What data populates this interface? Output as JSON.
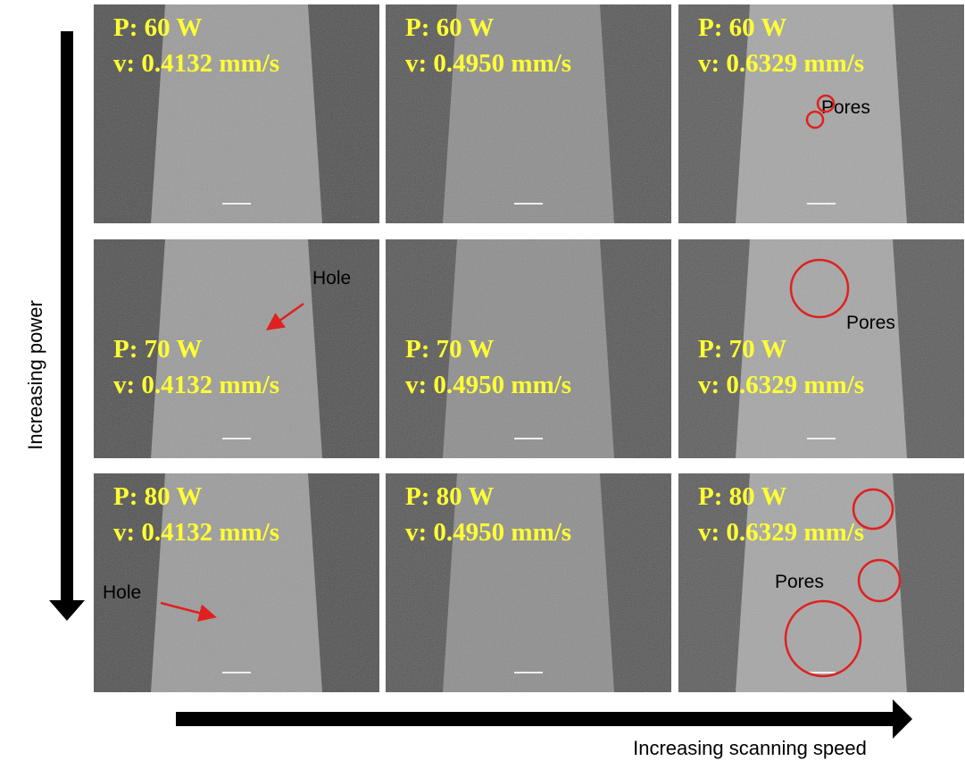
{
  "y_axis_label": "Increasing power",
  "x_axis_label": "Increasing scanning speed",
  "panels": [
    {
      "power": "P: 60 W",
      "speed": "v: 0.4132 mm/s"
    },
    {
      "power": "P: 60 W",
      "speed": "v: 0.4950 mm/s"
    },
    {
      "power": "P: 60 W",
      "speed": "v: 0.6329 mm/s",
      "annotation": "Pores"
    },
    {
      "power": "P: 70 W",
      "speed": "v: 0.4132 mm/s",
      "annotation": "Hole"
    },
    {
      "power": "P: 70 W",
      "speed": "v: 0.4950 mm/s"
    },
    {
      "power": "P: 70 W",
      "speed": "v: 0.6329 mm/s",
      "annotation": "Pores"
    },
    {
      "power": "P: 80 W",
      "speed": "v: 0.4132 mm/s",
      "annotation": "Hole"
    },
    {
      "power": "P: 80 W",
      "speed": "v: 0.4950 mm/s"
    },
    {
      "power": "P: 80 W",
      "speed": "v: 0.6329 mm/s",
      "annotation": "Pores"
    }
  ]
}
